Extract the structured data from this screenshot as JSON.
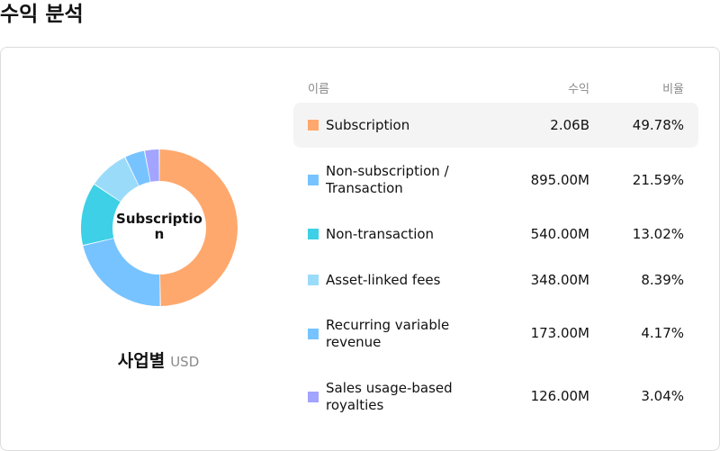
{
  "page": {
    "title": "수익 분석"
  },
  "summary": {
    "center_label": "Subscription",
    "caption": "사업별",
    "unit": "USD"
  },
  "table": {
    "headers": {
      "name": "이름",
      "revenue": "수익",
      "share": "비율"
    },
    "rows": [
      {
        "name": "Subscription",
        "revenue": "2.06B",
        "share": "49.78%",
        "color": "#FFA86D",
        "highlighted": true
      },
      {
        "name": "Non-subscription / Transaction",
        "revenue": "895.00M",
        "share": "21.59%",
        "color": "#77C3FF",
        "highlighted": false
      },
      {
        "name": "Non-transaction",
        "revenue": "540.00M",
        "share": "13.02%",
        "color": "#3DD0E6",
        "highlighted": false
      },
      {
        "name": "Asset-linked fees",
        "revenue": "348.00M",
        "share": "8.39%",
        "color": "#9BDBFA",
        "highlighted": false
      },
      {
        "name": "Recurring variable revenue",
        "revenue": "173.00M",
        "share": "4.17%",
        "color": "#77C3FF",
        "highlighted": false
      },
      {
        "name": "Sales usage-based royalties",
        "revenue": "126.00M",
        "share": "3.04%",
        "color": "#A2A4FF",
        "highlighted": false
      }
    ]
  },
  "chart_data": {
    "type": "pie",
    "categories": [
      "Subscription",
      "Non-subscription / Transaction",
      "Non-transaction",
      "Asset-linked fees",
      "Recurring variable revenue",
      "Sales usage-based royalties"
    ],
    "values": [
      49.78,
      21.59,
      13.02,
      8.39,
      4.17,
      3.04
    ],
    "colors": [
      "#FFA86D",
      "#77C3FF",
      "#3DD0E6",
      "#9BDBFA",
      "#77C3FF",
      "#A2A4FF"
    ],
    "title": "",
    "highlighted": "Subscription",
    "legend": "right"
  }
}
